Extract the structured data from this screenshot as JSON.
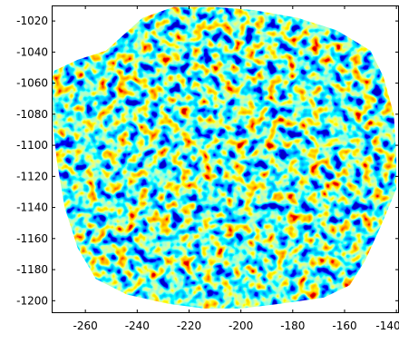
{
  "chart_data": {
    "type": "heatmap",
    "title": "",
    "xlabel": "",
    "ylabel": "",
    "xlim": [
      -273,
      -139
    ],
    "ylim": [
      -1208,
      -1010
    ],
    "x_ticks": [
      "-260",
      "-240",
      "-220",
      "-200",
      "-180",
      "-160",
      "-140"
    ],
    "x_tick_values": [
      -260,
      -240,
      -220,
      -200,
      -180,
      -160,
      -140
    ],
    "y_ticks": [
      "-1020",
      "-1040",
      "-1060",
      "-1080",
      "-1100",
      "-1120",
      "-1140",
      "-1160",
      "-1180",
      "-1200"
    ],
    "y_tick_values": [
      -1020,
      -1040,
      -1060,
      -1080,
      -1100,
      -1120,
      -1140,
      -1160,
      -1180,
      -1200
    ],
    "colormap": [
      "#00008f",
      "#0000ff",
      "#0080ff",
      "#00ffff",
      "#80ff80",
      "#ffff00",
      "#ff8000",
      "#ff0000",
      "#800000"
    ],
    "background": "#ffffff",
    "grid": false,
    "legend": "none",
    "region_outline": [
      [
        -272,
        -1052
      ],
      [
        -263,
        -1045
      ],
      [
        -252,
        -1039
      ],
      [
        -246,
        -1030
      ],
      [
        -238,
        -1018
      ],
      [
        -226,
        -1011
      ],
      [
        -210,
        -1011
      ],
      [
        -195,
        -1013
      ],
      [
        -178,
        -1018
      ],
      [
        -163,
        -1026
      ],
      [
        -150,
        -1039
      ],
      [
        -145,
        -1056
      ],
      [
        -141,
        -1080
      ],
      [
        -140,
        -1108
      ],
      [
        -140,
        -1128
      ],
      [
        -146,
        -1152
      ],
      [
        -152,
        -1174
      ],
      [
        -158,
        -1190
      ],
      [
        -168,
        -1198
      ],
      [
        -185,
        -1202
      ],
      [
        -200,
        -1205
      ],
      [
        -214,
        -1205
      ],
      [
        -228,
        -1202
      ],
      [
        -244,
        -1196
      ],
      [
        -256,
        -1186
      ],
      [
        -263,
        -1166
      ],
      [
        -268,
        -1140
      ],
      [
        -271,
        -1110
      ],
      [
        -273,
        -1080
      ],
      [
        -273,
        -1058
      ]
    ]
  }
}
